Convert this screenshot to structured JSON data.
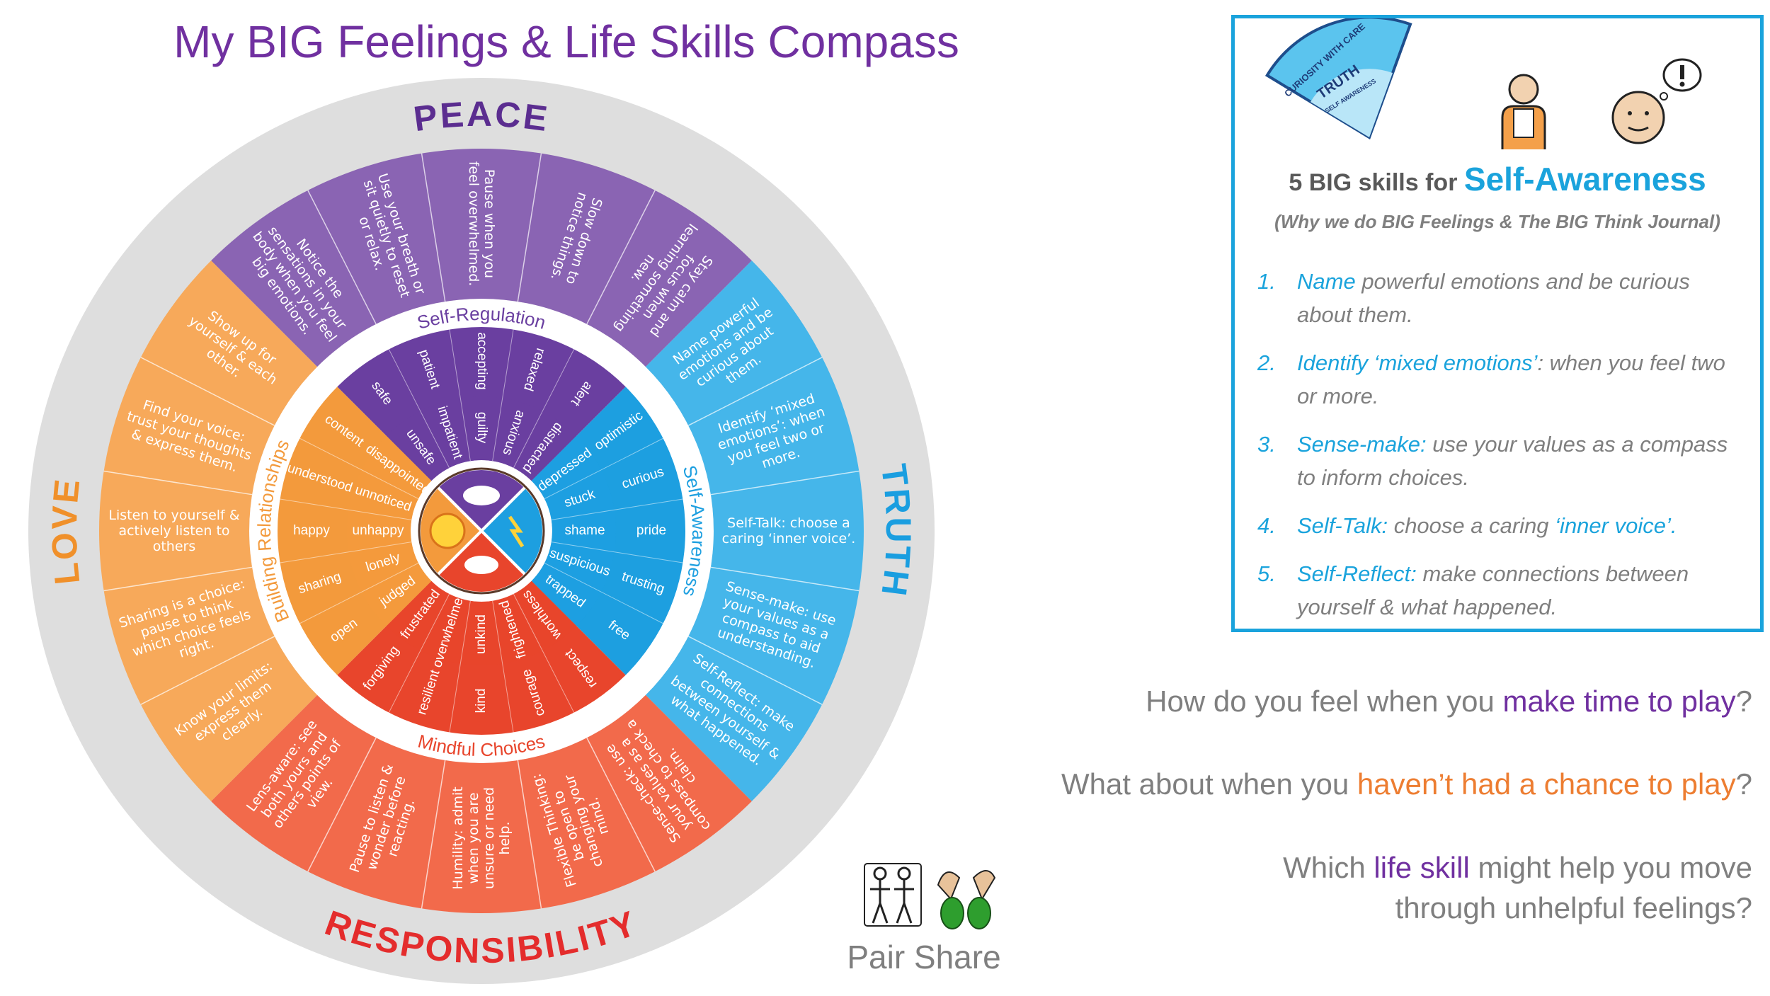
{
  "title": "My BIG Feelings & Life Skills Compass",
  "compass": {
    "sections": [
      {
        "compass_point": "PEACE",
        "point_color": "#5b2d90",
        "skill_area": "Self-Regulation",
        "color": "#8a64b3",
        "inner_color": "#6a3fa0",
        "skills": [
          "Notice the sensations in your body when you feel big emotions.",
          "Use your breath or sit quietly to reset or relax.",
          "Pause when you feel overwhelmed.",
          "Slow down to notice things.",
          "Stay calm and focus when learning something new."
        ],
        "feelings": [
          [
            "safe",
            "unsafe"
          ],
          [
            "patient",
            "impatient"
          ],
          [
            "accepting",
            "guilty"
          ],
          [
            "relaxed",
            "anxious"
          ],
          [
            "alert",
            "distracted"
          ]
        ]
      },
      {
        "compass_point": "TRUTH",
        "point_color": "#1a9ee0",
        "skill_area": "Self-Awareness",
        "color": "#45b6ea",
        "inner_color": "#1d9fe0",
        "skills": [
          "Name powerful emotions and be curious about them.",
          "Identify ‘mixed emotions’: when you feel two or more.",
          "Self-Talk: choose a caring ‘inner voice’.",
          "Sense-make: use your values as a compass to aid understanding.",
          "Self-Reflect: make connections between yourself & what happened."
        ],
        "feelings": [
          [
            "optimistic",
            "depressed"
          ],
          [
            "curious",
            "stuck"
          ],
          [
            "pride",
            "shame"
          ],
          [
            "trusting",
            "suspicious"
          ],
          [
            "free",
            "trapped"
          ]
        ]
      },
      {
        "compass_point": "RESPONSIBILITY",
        "point_color": "#e42c2c",
        "skill_area": "Mindful Choices",
        "color": "#f26a4b",
        "inner_color": "#e8452c",
        "skills": [
          "Sense-check: use your values as a compass to check a claim.",
          "Flexible Thinking: be open to changing your mind.",
          "Humility: admit when you are unsure or need help.",
          "Pause to listen & wonder before reacting.",
          "Lens-aware: see both yours and others points of view."
        ],
        "feelings": [
          [
            "respect",
            "worthless"
          ],
          [
            "courage",
            "frightened"
          ],
          [
            "kind",
            "unkind"
          ],
          [
            "resilient",
            "overwhelmed"
          ],
          [
            "forgiving",
            "frustrated"
          ]
        ]
      },
      {
        "compass_point": "LOVE",
        "point_color": "#f0902a",
        "skill_area": "Building Relationships",
        "color": "#f7a95a",
        "inner_color": "#f39a3c",
        "skills": [
          "Know your limits: express them clearly.",
          "Sharing is a choice: pause to think which choice feels right.",
          "Listen to yourself & actively listen to others",
          "Find your voice: trust your thoughts & express them.",
          "Show up for yourself & each other."
        ],
        "feelings": [
          [
            "open",
            "judged"
          ],
          [
            "sharing",
            "lonely"
          ],
          [
            "happy",
            "unhappy"
          ],
          [
            "understood",
            "unnoticed"
          ],
          [
            "content",
            "disappointed"
          ]
        ]
      }
    ]
  },
  "panel": {
    "badge": [
      "CURIOSITY WITH CARE",
      "TRUTH",
      "SELF AWARENESS"
    ],
    "heading": {
      "lead": "5 BIG skills for",
      "focus": "Self-Awareness"
    },
    "subtitle": "(Why we do BIG Feelings & The BIG Think Journal)",
    "items": [
      {
        "number": "1.",
        "segments": [
          {
            "text": "Name",
            "color": "#1aa3dc"
          },
          {
            "text": " powerful emotions and be curious about them.",
            "color": "#7f7f7f"
          }
        ]
      },
      {
        "number": "2.",
        "segments": [
          {
            "text": "Identify ‘mixed emotions’",
            "color": "#1aa3dc"
          },
          {
            "text": ": when you feel two or more.",
            "color": "#7f7f7f"
          }
        ]
      },
      {
        "number": "3.",
        "segments": [
          {
            "text": "Sense-make:",
            "color": "#1aa3dc"
          },
          {
            "text": " use your values as a compass to inform choices.",
            "color": "#7f7f7f"
          }
        ]
      },
      {
        "number": "4.",
        "segments": [
          {
            "text": "Self-Talk:",
            "color": "#1aa3dc"
          },
          {
            "text": " choose a caring ",
            "color": "#7f7f7f"
          },
          {
            "text": "‘inner voice’.",
            "color": "#1aa3dc"
          }
        ]
      },
      {
        "number": "5.",
        "segments": [
          {
            "text": "Self-Reflect:",
            "color": "#1aa3dc"
          },
          {
            "text": " make connections between yourself & what happened.",
            "color": "#7f7f7f"
          }
        ]
      }
    ]
  },
  "questions": [
    {
      "segments": [
        {
          "text": "How do you feel when you ",
          "color": "#7f7f7f"
        },
        {
          "text": "make time to play",
          "color": "#7030a0"
        },
        {
          "text": "?",
          "color": "#7f7f7f"
        }
      ]
    },
    {
      "segments": [
        {
          "text": "What about when you ",
          "color": "#7f7f7f"
        },
        {
          "text": "haven’t had a chance to play",
          "color": "#ed7d31"
        },
        {
          "text": "?",
          "color": "#7f7f7f"
        }
      ]
    },
    {
      "segments": [
        {
          "text": "Which ",
          "color": "#7f7f7f"
        },
        {
          "text": "life skill",
          "color": "#7030a0"
        },
        {
          "text": " might help you move through unhelpful feelings?",
          "color": "#7f7f7f"
        }
      ]
    }
  ],
  "pair_share": {
    "label": "Pair Share"
  }
}
